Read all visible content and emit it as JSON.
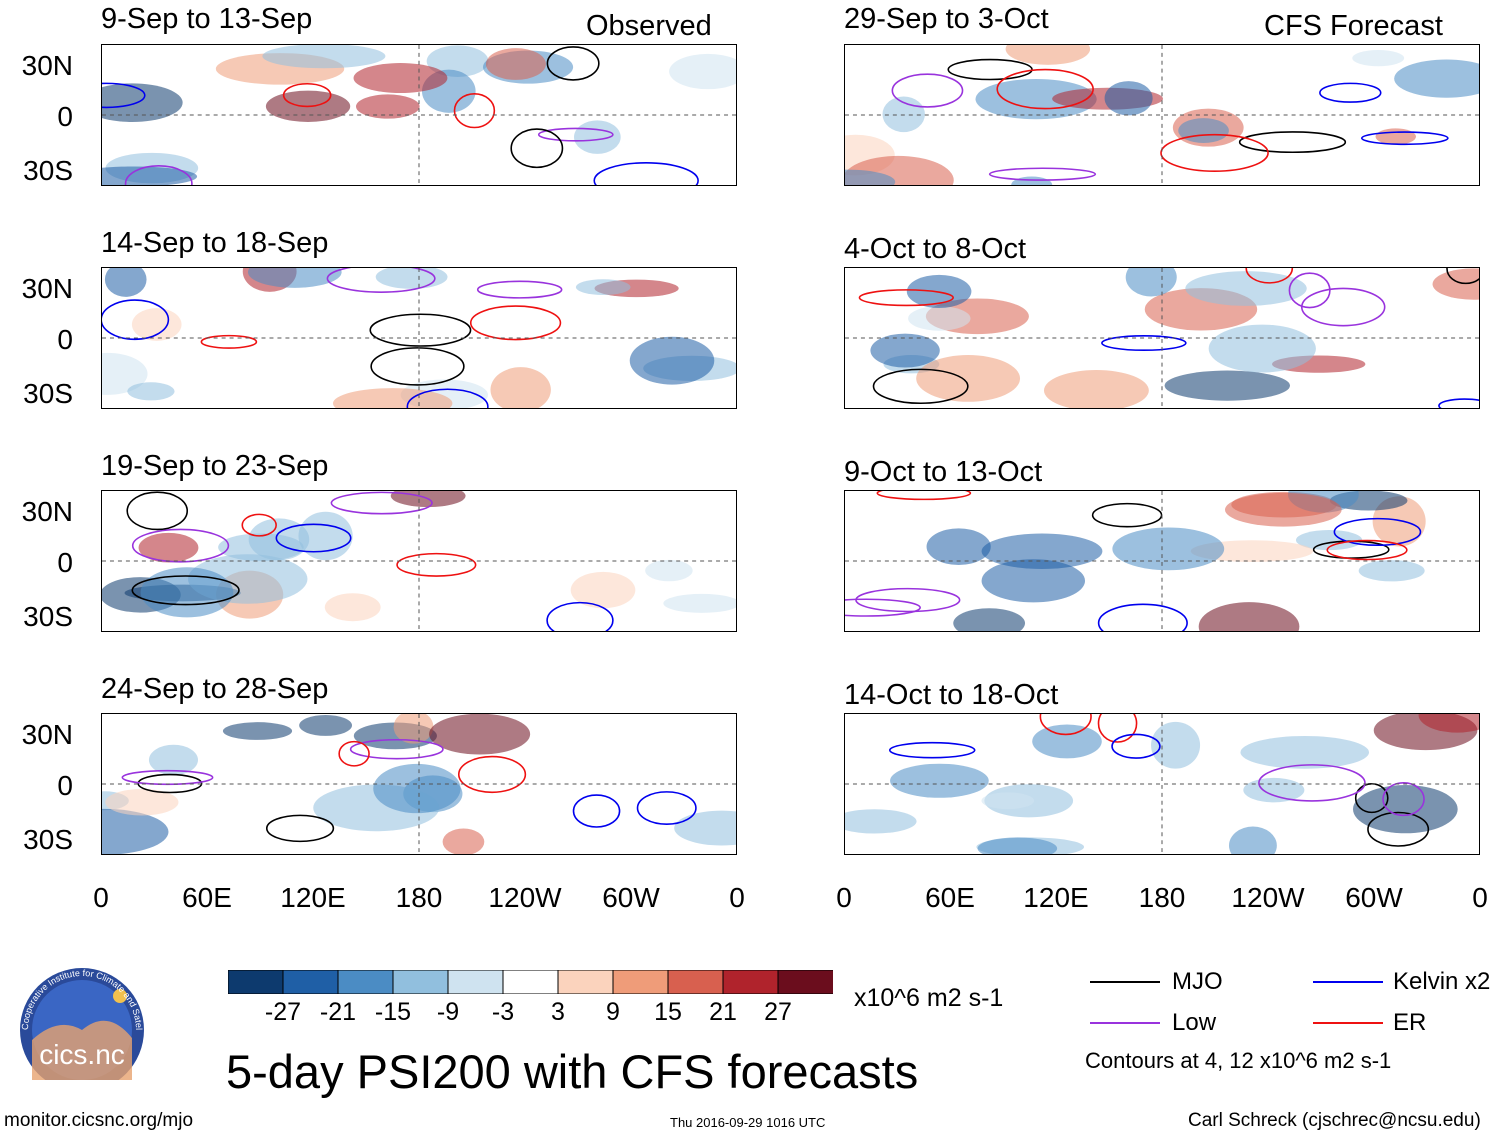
{
  "columns": {
    "left_label": "Observed",
    "right_label": "CFS Forecast"
  },
  "panels_left": [
    {
      "title": "9-Sep to 13-Sep"
    },
    {
      "title": "14-Sep to 18-Sep"
    },
    {
      "title": "19-Sep to 23-Sep"
    },
    {
      "title": "24-Sep to 28-Sep"
    }
  ],
  "panels_right": [
    {
      "title": "29-Sep to 3-Oct"
    },
    {
      "title": "4-Oct to 8-Oct"
    },
    {
      "title": "9-Oct to 13-Oct"
    },
    {
      "title": "14-Oct to 18-Oct"
    }
  ],
  "lat_labels": [
    "30N",
    "0",
    "30S"
  ],
  "lon_labels": [
    "0",
    "60E",
    "120E",
    "180",
    "120W",
    "60W",
    "0"
  ],
  "colorbar": {
    "ticks": [
      "-27",
      "-21",
      "-15",
      "-9",
      "-3",
      "3",
      "9",
      "15",
      "21",
      "27"
    ],
    "units": "x10^6 m2 s-1",
    "colors": [
      "#0d3a6e",
      "#1f5fa6",
      "#4b8cc4",
      "#91bfde",
      "#cfe3f0",
      "#ffffff",
      "#fbd3bd",
      "#ef9c79",
      "#d8604f",
      "#b0232c",
      "#6b0d1d"
    ]
  },
  "legend": {
    "items": [
      {
        "label": "MJO",
        "color": "#000000"
      },
      {
        "label": "Kelvin x2",
        "color": "#0000ee"
      },
      {
        "label": "Low",
        "color": "#9933dd"
      },
      {
        "label": "ER",
        "color": "#ee1111"
      }
    ],
    "note": "Contours at 4, 12 x10^6 m2 s-1"
  },
  "title": "5-day PSI200 with CFS forecasts",
  "logo_text": "cics.nc",
  "logo_ring_text": "Cooperative Institute for Climate and Satellites",
  "footer": {
    "url": "monitor.cicsnc.org/mjo",
    "timestamp": "Thu 2016-09-29 1016 UTC",
    "credit": "Carl Schreck (cjschrec@ncsu.edu)"
  }
}
